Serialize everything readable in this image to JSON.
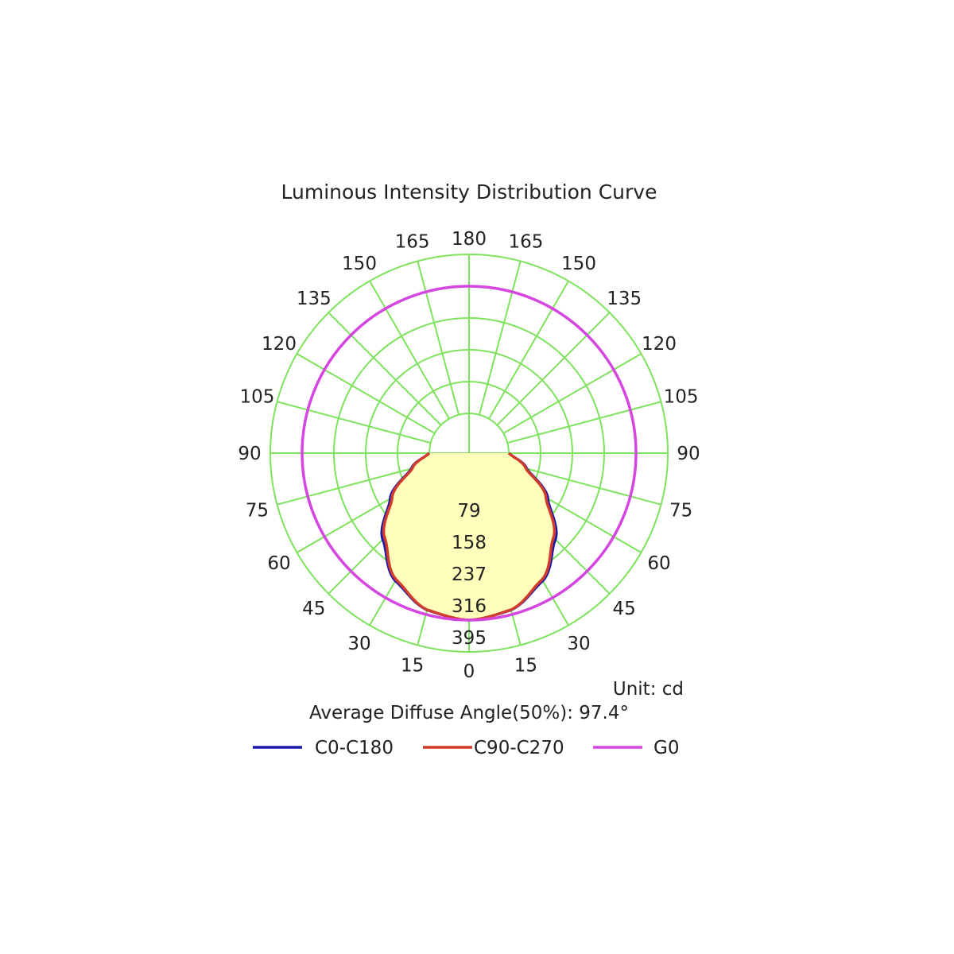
{
  "chart_data": {
    "type": "polar",
    "title": "Luminous Intensity Distribution Curve",
    "unit_label": "Unit: cd",
    "footer_note": "Average Diffuse Angle(50%): 97.4°",
    "radial_ticks": [
      "79",
      "158",
      "237",
      "316",
      "395"
    ],
    "radial_max": 395,
    "angle_ticks": {
      "right": [
        "180",
        "165",
        "150",
        "135",
        "120",
        "105",
        "90",
        "75",
        "60",
        "45",
        "30",
        "15",
        "0"
      ],
      "left": [
        "165",
        "150",
        "135",
        "120",
        "105",
        "90",
        "75",
        "60",
        "45",
        "30",
        "15"
      ]
    },
    "grid_color": "#7de35c",
    "fill_color": "#ffffbb",
    "series": [
      {
        "name": "C0-C180",
        "color": "#1a1aa8",
        "angles": [
          0,
          15,
          30,
          45,
          60,
          75,
          90
        ],
        "values": [
          316,
          305,
          268,
          205,
          128,
          50,
          0
        ]
      },
      {
        "name": "C90-C270",
        "color": "#d23c2c",
        "angles": [
          0,
          15,
          30,
          45,
          60,
          75,
          90
        ],
        "values": [
          316,
          304,
          264,
          198,
          122,
          47,
          0
        ]
      },
      {
        "name": "G0",
        "color": "#d546e0",
        "angles": [
          0,
          90,
          180
        ],
        "values": [
          316,
          316,
          316
        ]
      }
    ]
  }
}
